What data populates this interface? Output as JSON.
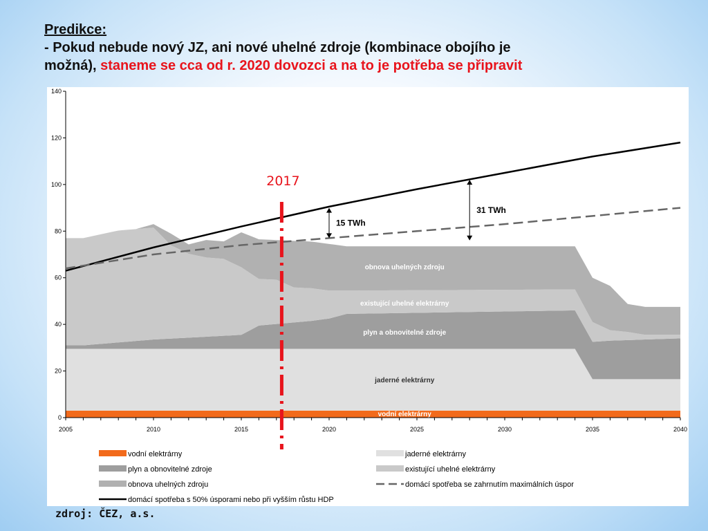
{
  "slide": {
    "title": "Predikce:",
    "line1": "- Pokud nebude nový JZ, ani nové uhelné zdroje (kombinace obojího je",
    "line2_black": "možná),",
    "line2_red": "staneme se cca od r. 2020 dovozci a na to je potřeba se připravit",
    "source": "zdroj: ČEZ, a.s.",
    "accent_red": "#e8141c"
  },
  "chart_data": {
    "type": "area",
    "xlim": [
      2005,
      2040
    ],
    "ylim": [
      0,
      140
    ],
    "x_ticks": [
      2005,
      2010,
      2015,
      2020,
      2025,
      2030,
      2035,
      2040
    ],
    "y_ticks": [
      0,
      20,
      40,
      60,
      80,
      100,
      120,
      140
    ],
    "grid": false,
    "legend_placement": "bottom",
    "stacked_series": [
      {
        "name": "vodní elektrárny",
        "color": "#f26a1b",
        "inline_label": "vodní elektrárny",
        "x": [
          2005,
          2040
        ],
        "values": [
          3,
          3
        ]
      },
      {
        "name": "jaderné elektrárny",
        "color": "#e0e0e0",
        "inline_label": "jaderné elektrárny",
        "x": [
          2005,
          2034,
          2035,
          2040
        ],
        "values": [
          26.5,
          26.5,
          13.5,
          13.5
        ]
      },
      {
        "name": "plyn a obnovitelné zdroje",
        "color": "#9e9e9e",
        "inline_label": "plyn a obnovitelné zdroje",
        "x": [
          2005,
          2006,
          2010,
          2015,
          2016,
          2019,
          2020,
          2021,
          2034,
          2035,
          2036,
          2040
        ],
        "values": [
          1.5,
          1.5,
          4,
          6,
          10,
          12,
          13,
          15,
          16.5,
          16,
          16.5,
          17.5
        ]
      },
      {
        "name": "existující uhelné elektrárny",
        "color": "#c9c9c9",
        "inline_label": "existující uhelné elektrárny",
        "x": [
          2005,
          2006,
          2007,
          2008,
          2009,
          2010,
          2011,
          2012,
          2013,
          2014,
          2015,
          2016,
          2017,
          2018,
          2019,
          2020,
          2021,
          2034,
          2035,
          2036,
          2037,
          2038,
          2040
        ],
        "values": [
          46,
          46,
          47,
          48,
          48,
          48,
          40,
          36,
          34,
          33,
          29,
          20,
          19,
          15,
          14,
          12,
          10,
          9,
          8.5,
          4.5,
          3.5,
          2,
          1.5
        ]
      },
      {
        "name": "obnova uhelných zdroju",
        "color": "#b1b1b1",
        "inline_label": "obnova uhelných zdroju",
        "x": [
          2005,
          2006,
          2007,
          2008,
          2009,
          2010,
          2011,
          2012,
          2013,
          2014,
          2015,
          2016,
          2017,
          2018,
          2019,
          2020,
          2021,
          2034,
          2035,
          2036,
          2037,
          2038,
          2040
        ],
        "values": [
          0,
          0,
          0,
          0,
          0,
          1.5,
          5,
          4,
          7.5,
          7.5,
          15,
          17,
          17,
          20,
          20,
          20,
          19,
          18.5,
          19,
          19,
          12,
          12,
          12
        ]
      }
    ],
    "line_series": [
      {
        "name": "domácí spotřeba s 50% úsporami nebo při vyšším růstu HDP",
        "color": "#000000",
        "style": "solid",
        "x": [
          2005,
          2010,
          2015,
          2020,
          2025,
          2030,
          2035,
          2040
        ],
        "values": [
          63,
          73,
          82,
          90.5,
          98,
          105,
          112,
          118
        ]
      },
      {
        "name": "domácí spotřeba se zahrnutím maximálních úspor",
        "color": "#666666",
        "style": "dashed",
        "x": [
          2005,
          2010,
          2015,
          2020,
          2025,
          2030,
          2035,
          2040
        ],
        "values": [
          64,
          70,
          74,
          77,
          80,
          83,
          86.5,
          90
        ]
      }
    ],
    "marker": {
      "label": "2017",
      "x": 2017.3,
      "color": "#e8141c"
    },
    "annotations": [
      {
        "text": "15 TWh",
        "x": 2020,
        "y_from": 77,
        "y_to": 90
      },
      {
        "text": "31 TWh",
        "x": 2028,
        "y_from": 76,
        "y_to": 102
      }
    ],
    "legend": {
      "left": [
        "vodní elektrárny",
        "plyn a obnovitelné zdroje",
        "obnova uhelných zdroju",
        "domácí spotřeba s 50% úsporami nebo při vyšším růstu HDP"
      ],
      "right": [
        "jaderné elektrárny",
        "existující uhelné elektrárny",
        "domácí spotřeba se zahrnutím maximálních úspor"
      ]
    }
  }
}
